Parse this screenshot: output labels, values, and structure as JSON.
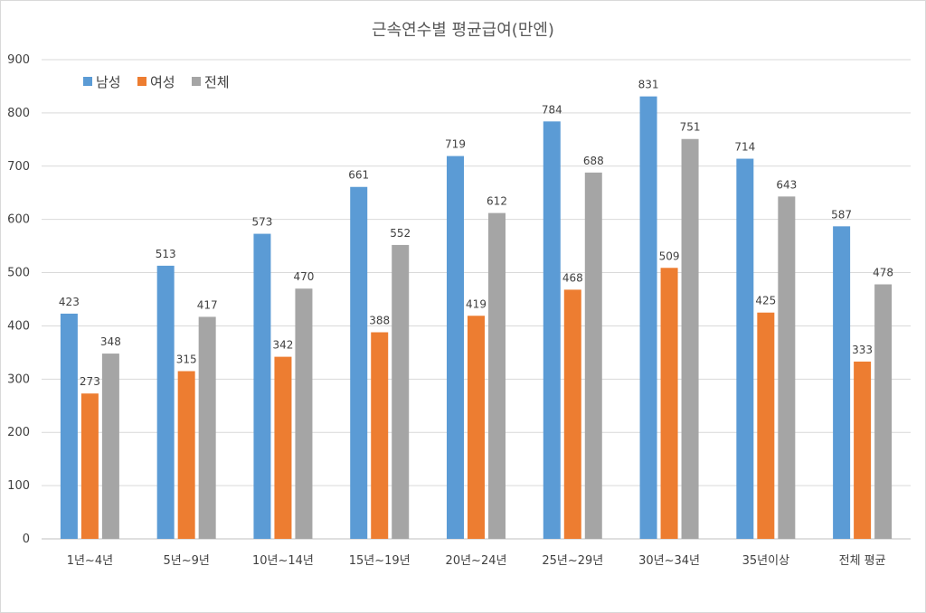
{
  "chart_data": {
    "type": "bar",
    "title": "근속연수별 평균급여(만엔)",
    "categories": [
      "1년~4년",
      "5년~9년",
      "10년~14년",
      "15년~19년",
      "20년~24년",
      "25년~29년",
      "30년~34년",
      "35년이상",
      "전체 평균"
    ],
    "series": [
      {
        "name": "남성",
        "color": "#5B9BD5",
        "values": [
          423,
          513,
          573,
          661,
          719,
          784,
          831,
          714,
          587
        ]
      },
      {
        "name": "여성",
        "color": "#ED7D31",
        "values": [
          273,
          315,
          342,
          388,
          419,
          468,
          509,
          425,
          333
        ]
      },
      {
        "name": "전체",
        "color": "#A5A5A5",
        "values": [
          348,
          417,
          470,
          552,
          612,
          688,
          751,
          643,
          478
        ]
      }
    ],
    "ylim": [
      0,
      900
    ],
    "yticks": [
      0,
      100,
      200,
      300,
      400,
      500,
      600,
      700,
      800,
      900
    ],
    "grid": true,
    "legend_position": "top-left"
  }
}
